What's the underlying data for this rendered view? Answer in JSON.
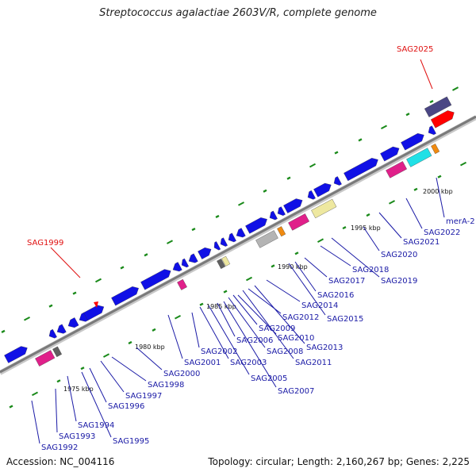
{
  "title": "Streptococcus agalactiae 2603V/R, complete genome",
  "footer": {
    "accession": "Accession: NC_004116",
    "summary": "Topology: circular; Length: 2,160,267 bp; Genes: 2,225"
  },
  "colors": {
    "gene_blue": "#1010e6",
    "pink": "#e0208a",
    "cyan": "#20e0e6",
    "orange": "#f08a10",
    "khaki": "#eee8a0",
    "gray": "#b4b4b4",
    "dark": "#606060",
    "navy": "#4a4684",
    "red": "#ff0000",
    "tick_green": "#1a8a1a",
    "label_blue": "#1a1aa6",
    "highlight_red": "#e01010"
  },
  "scale_ticks": [
    "1975 kbp",
    "1980 kbp",
    "1985 kbp",
    "1990 kbp",
    "1995 kbp",
    "2000 kbp"
  ],
  "highlighted_genes": [
    "SAG1999",
    "SAG2025"
  ],
  "gene_labels": [
    "SAG1992",
    "SAG1993",
    "SAG1994",
    "SAG1995",
    "SAG1996",
    "SAG1997",
    "SAG1998",
    "SAG2000",
    "SAG2001",
    "SAG2002",
    "SAG2003",
    "SAG2005",
    "SAG2006",
    "SAG2007",
    "SAG2008",
    "SAG2009",
    "SAG2010",
    "SAG2011",
    "SAG2012",
    "SAG2013",
    "SAG2014",
    "SAG2015",
    "SAG2016",
    "SAG2017",
    "SAG2018",
    "SAG2019",
    "SAG2020",
    "SAG2021",
    "SAG2022",
    "merA-2"
  ]
}
